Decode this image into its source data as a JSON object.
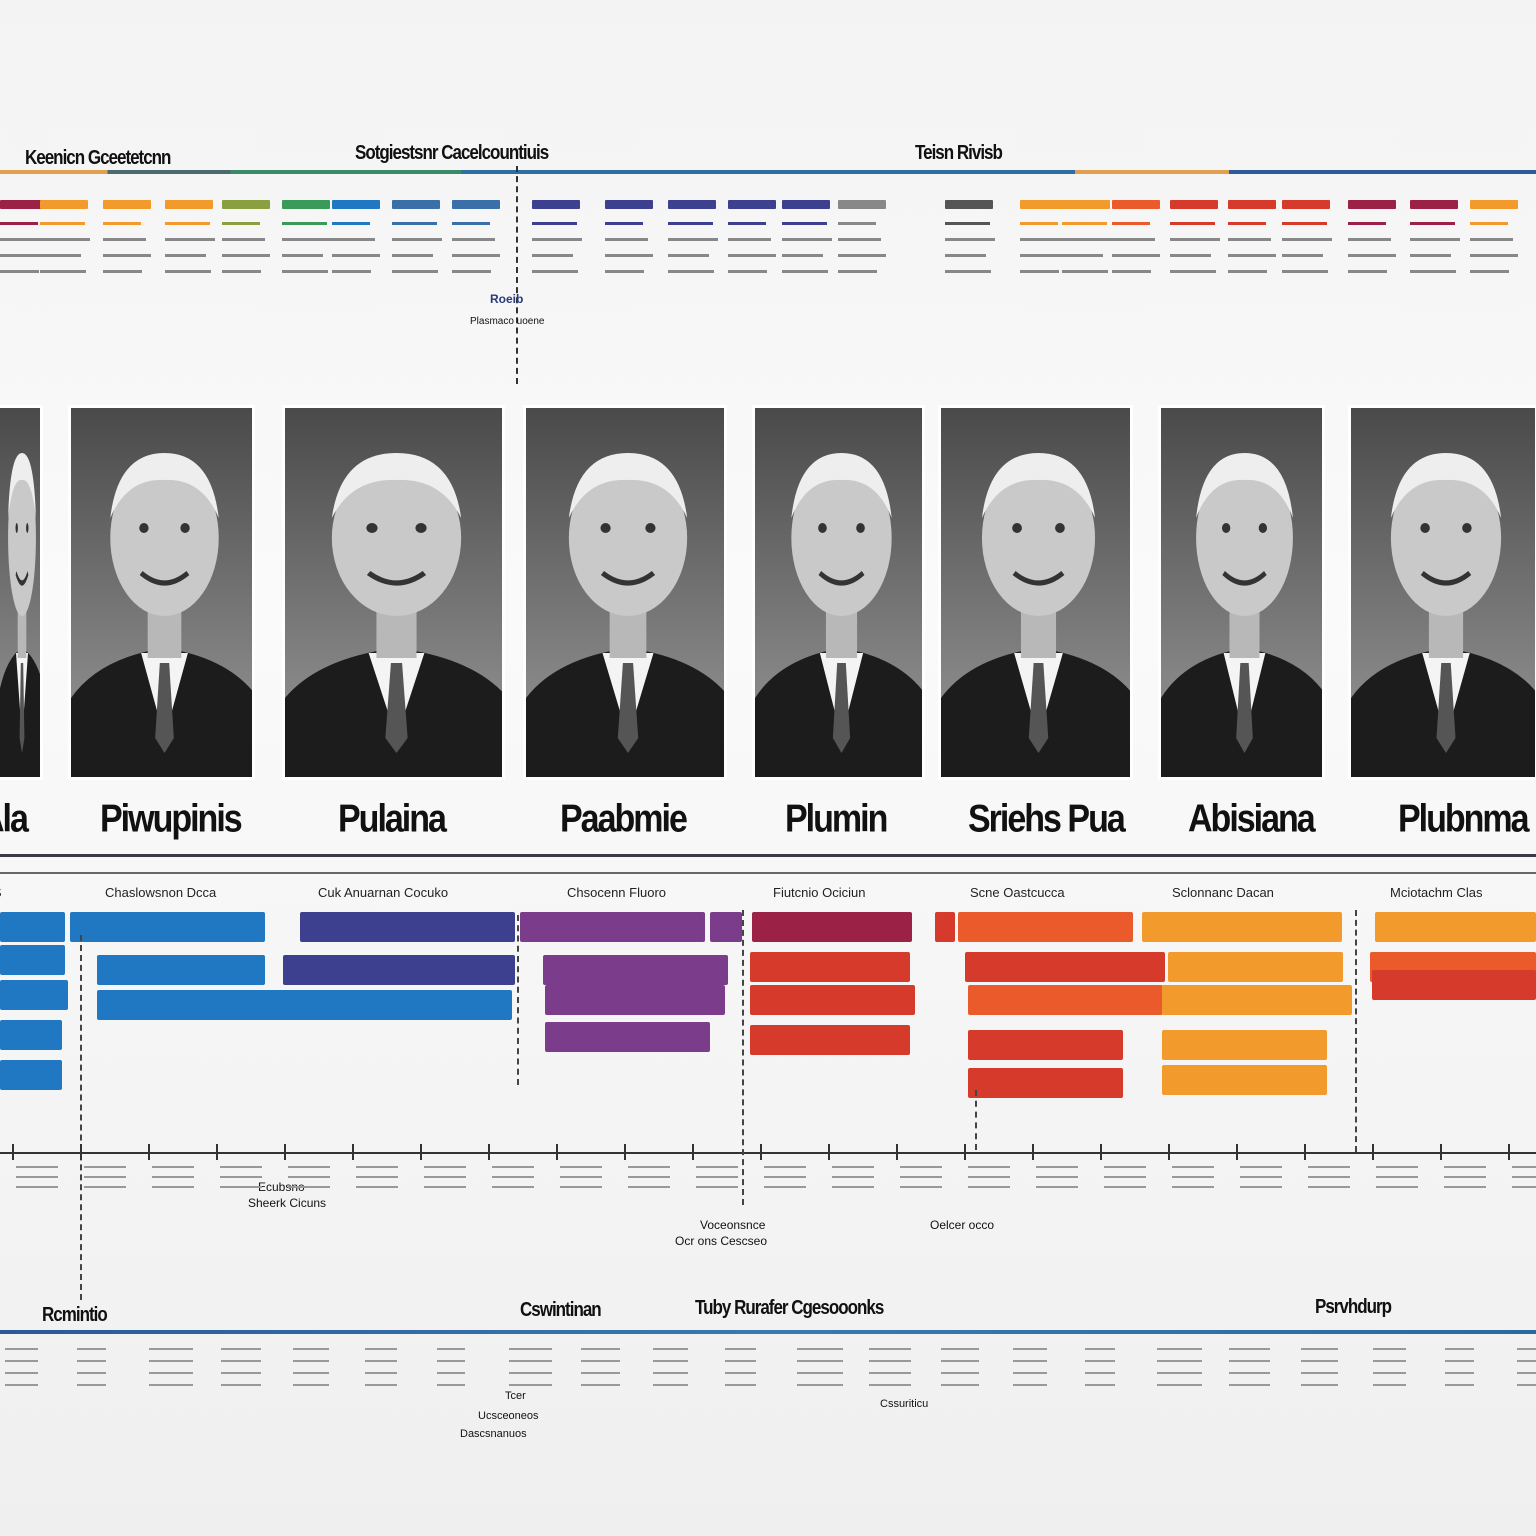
{
  "top_timeline": {
    "labels": [
      "Keenicn Gceetetcnn",
      "Sotgiestsnr Cacelcountiuis",
      "Teisn Rivisb"
    ],
    "mid_label": "Roeib",
    "mid_sub": "Plasmaco uoene"
  },
  "portraits": [
    {
      "name": "Ala"
    },
    {
      "name": "Piwupinis"
    },
    {
      "name": "Pulaina"
    },
    {
      "name": "Paabmie"
    },
    {
      "name": "Plumin"
    },
    {
      "name": "Sriehs Pua"
    },
    {
      "name": "Abisiana"
    },
    {
      "name": "Plubnma"
    }
  ],
  "columns": [
    "iS",
    "Chaslowsnon Dcca",
    "Cuk Anuarnan Cocuko",
    "Chsocenn Fluoro",
    "Fiutcnio Ociciun",
    "Scne Oastcucca",
    "Sclonnanc Dacan",
    "Mciotachm Clas"
  ],
  "axis_notes": [
    "Ecubsno",
    "Sheerk Cicuns",
    "Voceonsnce",
    "Ocr ons Cescseo",
    "Oelcer occo"
  ],
  "bottom_timeline": {
    "labels": [
      "Rcmintio",
      "Cswintinan",
      "Tuby Rurafer Cgesooonks",
      "Psrvhdurp"
    ],
    "notes": [
      "Tcer",
      "Ucsceoneos",
      "Dascsnanuos",
      "Cssuriticu"
    ]
  },
  "colors": {
    "blue": "#1f78c1",
    "indigo": "#3d3f8f",
    "purple": "#7b3c8c",
    "crimson": "#9b2146",
    "red": "#d63a2a",
    "orange_red": "#ea5a2a",
    "orange": "#f29a2b",
    "line_blue": "#3a6fa8"
  }
}
